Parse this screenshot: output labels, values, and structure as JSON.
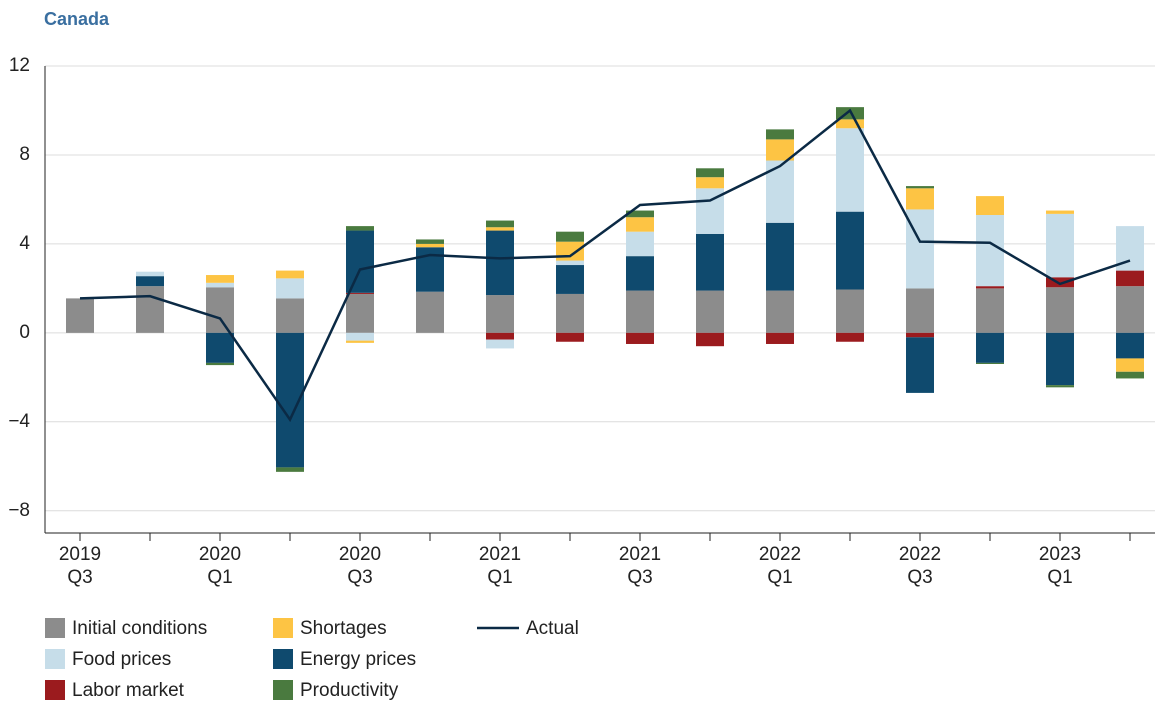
{
  "chart_data": {
    "type": "bar",
    "stacked": true,
    "title": "Canada",
    "categories": [
      "2019\nQ3",
      null,
      "2020\nQ1",
      null,
      "2020\nQ3",
      null,
      "2021\nQ1",
      null,
      "2021\nQ3",
      null,
      "2022\nQ1",
      null,
      "2022\nQ3",
      null,
      "2023\nQ1",
      null
    ],
    "series": [
      {
        "name": "Initial conditions",
        "color": "#8c8c8c",
        "values": [
          1.55,
          2.1,
          2.05,
          1.55,
          1.75,
          1.85,
          1.7,
          1.75,
          1.9,
          1.9,
          1.9,
          1.95,
          2.0,
          2.0,
          2.05,
          2.1
        ]
      },
      {
        "name": "Shortages",
        "color": "#fdc444",
        "values": [
          0,
          0,
          0.35,
          0.35,
          -0.1,
          0.15,
          0.15,
          0.85,
          0.65,
          0.5,
          0.95,
          0.4,
          0.95,
          0.85,
          0.15,
          -0.6
        ]
      },
      {
        "name": "Food prices",
        "color": "#c6dde9",
        "values": [
          0,
          0.2,
          0.2,
          0.9,
          -0.35,
          0,
          -0.4,
          0.2,
          1.1,
          2.05,
          2.8,
          3.75,
          3.55,
          3.2,
          2.85,
          2.0
        ]
      },
      {
        "name": "Energy prices",
        "color": "#0f4a6e",
        "values": [
          0,
          0.45,
          -1.35,
          -6.05,
          2.8,
          2.0,
          2.9,
          1.3,
          1.55,
          2.55,
          3.05,
          3.5,
          -2.5,
          -1.35,
          -2.35,
          -1.15
        ]
      },
      {
        "name": "Labor market",
        "color": "#9b1b1e",
        "values": [
          0,
          0,
          0,
          0,
          0.05,
          0,
          -0.3,
          -0.4,
          -0.5,
          -0.6,
          -0.5,
          -0.4,
          -0.2,
          0.1,
          0.45,
          0.7
        ]
      },
      {
        "name": "Productivity",
        "color": "#4a7a3f",
        "values": [
          0,
          0,
          -0.1,
          -0.2,
          0.2,
          0.2,
          0.3,
          0.45,
          0.3,
          0.4,
          0.45,
          0.55,
          0.1,
          -0.05,
          -0.1,
          -0.3
        ]
      }
    ],
    "line": {
      "name": "Actual",
      "color": "#0b2a45",
      "values": [
        1.55,
        1.65,
        0.65,
        -3.9,
        2.85,
        3.5,
        3.35,
        3.45,
        5.75,
        5.95,
        7.5,
        10.0,
        4.1,
        4.05,
        2.2,
        3.25
      ]
    },
    "ylim": [
      -9,
      12
    ],
    "yticks": [
      {
        "value": -8,
        "label": "−8"
      },
      {
        "value": -4,
        "label": "−4"
      },
      0,
      4,
      8,
      12
    ],
    "grid": true
  }
}
